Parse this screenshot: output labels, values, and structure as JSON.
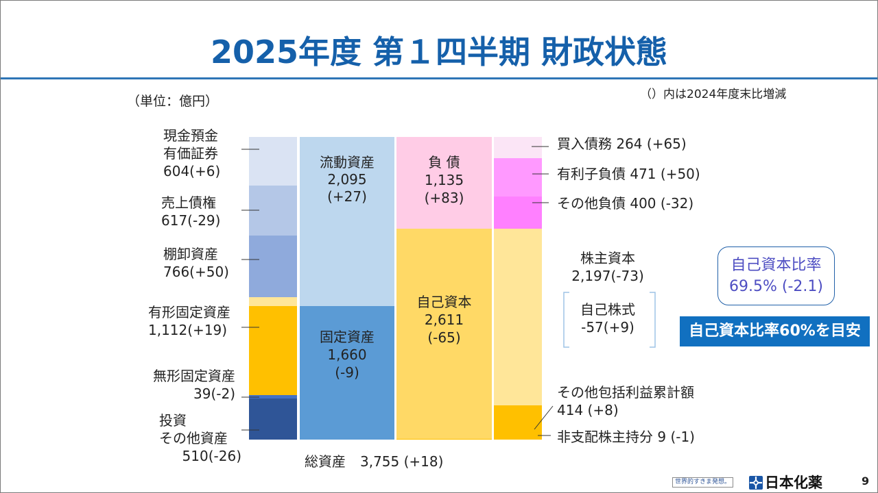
{
  "chart_data": {
    "type": "bar",
    "stacked": true,
    "title": "2025年度 第１四半期 財政状態",
    "unit": "（単位：億円）",
    "note": "（）内は2024年度末比増減",
    "total_value": 3755,
    "total_label": "総資産",
    "total_text": "3,755 (+18)",
    "columns": [
      {
        "segments": [
          {
            "value": 604,
            "color": "#dae3f3",
            "label": [
              "現金預金",
              "有価証券",
              "604(+6)"
            ]
          },
          {
            "value": 617,
            "color": "#b4c7e7",
            "label": [
              "売上債権",
              "617(-29)"
            ]
          },
          {
            "value": 766,
            "color": "#8faadc",
            "label": [
              "棚卸資産",
              "766(+50)"
            ]
          },
          {
            "value": 108,
            "color": "#ffe699"
          },
          {
            "value": 1112,
            "color": "#ffc000",
            "label": [
              "有形固定資産",
              "1,112(+19)"
            ]
          },
          {
            "value": 39,
            "color": "#4472c4",
            "label": [
              "無形固定資産",
              "39(-2)"
            ]
          },
          {
            "value": 510,
            "color": "#2f5597",
            "label": [
              "投資",
              "その他資産",
              "510(-26)"
            ]
          }
        ]
      },
      {
        "segments": [
          {
            "value": 2095,
            "color": "#bdd7ee",
            "label": [
              "流動資産",
              "2,095",
              "(+27)"
            ]
          },
          {
            "value": 1660,
            "color": "#5b9bd5",
            "label": [
              "固定資産",
              "1,660",
              "(-9)"
            ]
          }
        ]
      },
      {
        "segments": [
          {
            "value": 1135,
            "color": "#ffcce6",
            "label": [
              "負 債",
              "1,135",
              "(+83)"
            ]
          },
          {
            "value": 2611,
            "color": "#ffd966",
            "label": [
              "自己資本",
              "2,611",
              "(-65)"
            ]
          },
          {
            "value": 9,
            "color": "#ffc000"
          }
        ]
      },
      {
        "segments": [
          {
            "value": 264,
            "color": "#fbe5f6",
            "label": [
              "買入債務 264 (+65)"
            ]
          },
          {
            "value": 471,
            "color": "#ff99ff",
            "label": [
              "有利子負債 471 (+50)"
            ]
          },
          {
            "value": 400,
            "color": "#ff80ff",
            "label": [
              "その他負債 400 (-32)"
            ]
          },
          {
            "value": 2197,
            "color": "#ffe699",
            "label": [
              "株主資本",
              "2,197(-73)"
            ],
            "sub_label": [
              "自己株式",
              "-57(+9)"
            ]
          },
          {
            "value": 414,
            "color": "#ffc000",
            "label": [
              "その他包括利益累計額",
              "414 (+8)"
            ]
          },
          {
            "value": 9,
            "color": "#ffc000",
            "label": [
              "非支配株主持分 9 (-1)"
            ]
          }
        ]
      }
    ]
  },
  "callouts": {
    "equity_ratio_label": "自己資本比率",
    "equity_ratio_value": "69.5% (-2.1)",
    "equity_ratio_target": "自己資本比率60%を目安"
  },
  "footer": {
    "tagline": "世界的すきま発想。",
    "company": "日本化薬",
    "logo_icon": "company-logo-icon",
    "page_number": "9"
  },
  "theme": {
    "title_color": "#1560aa",
    "rule_color": "#2e75b6",
    "accent_color": "#1170c0",
    "ratio_text_color": "#4d4dc2"
  }
}
